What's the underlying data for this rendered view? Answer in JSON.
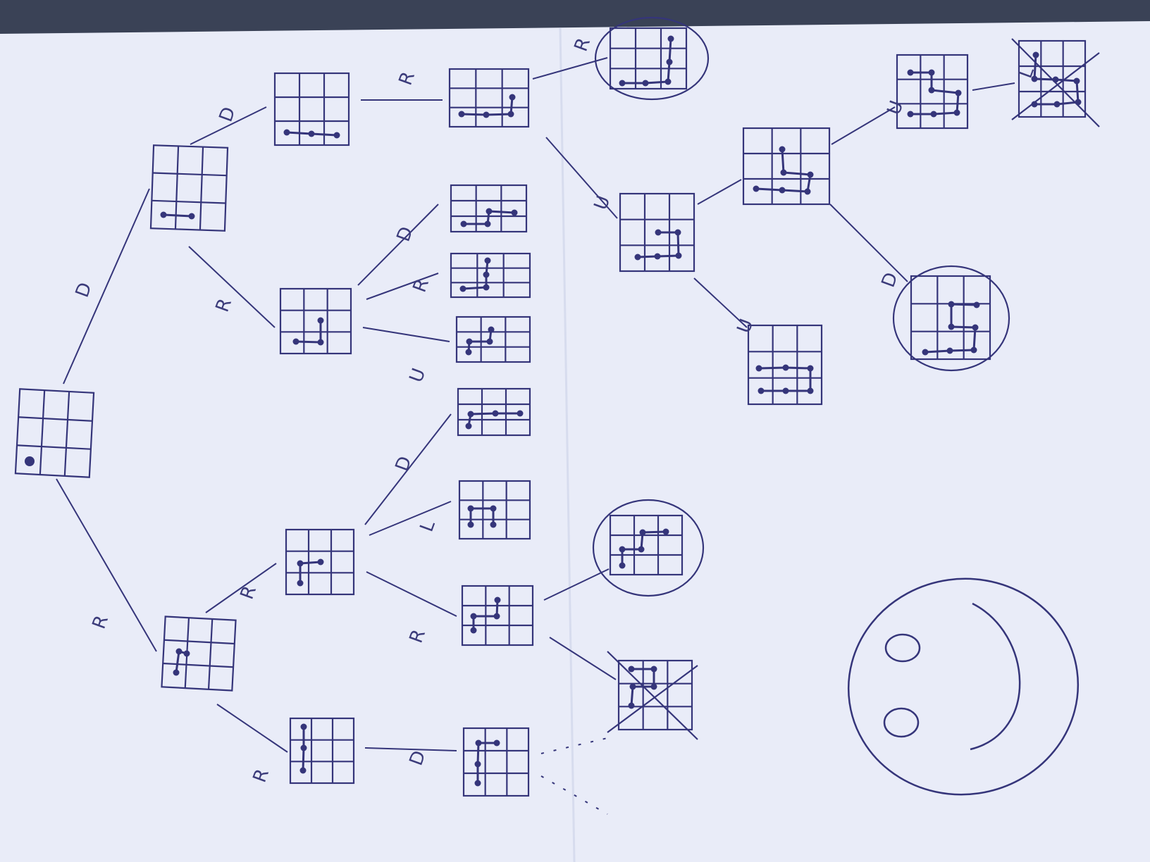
{
  "colors": {
    "paper": "#e9ecf8",
    "paper_edge": "#cfd6ec",
    "ink": "#35357a",
    "background": "#3a4256"
  },
  "labels": {
    "d1": "D",
    "r1": "R",
    "d2": "D",
    "r2": "R",
    "r3": "R",
    "d3": "D",
    "r4": "R",
    "u1": "U",
    "d4": "D",
    "l1": "L",
    "r5": "R",
    "r6": "R",
    "d5": "D",
    "r7": "R",
    "u2": "U",
    "u3": "U",
    "d6": "D",
    "u4": "U",
    "l2": "L"
  }
}
